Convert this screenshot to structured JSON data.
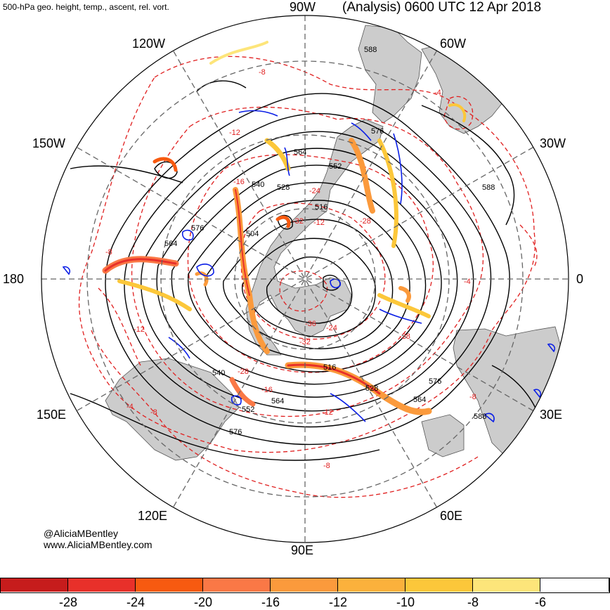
{
  "header": {
    "variables": "500-hPa geo. height, temp., ascent, rel. vort.",
    "valid_time": "(Analysis) 0600 UTC 12 Apr 2018"
  },
  "credits": {
    "handle": "@AliciaMBentley",
    "website": "www.AliciaMBentley.com"
  },
  "map": {
    "projection": "polar stereographic (north pole centered)",
    "colors": {
      "land": "#cccccc",
      "coast": "#555555",
      "grid": "#666666",
      "height_contour": "#000000",
      "temperature_contour": "#e02020",
      "vorticity_contour": "#0a1ee6"
    },
    "longitude_labels": [
      {
        "text": "90W"
      },
      {
        "text": "60W"
      },
      {
        "text": "30W"
      },
      {
        "text": "0"
      },
      {
        "text": "30E"
      },
      {
        "text": "60E"
      },
      {
        "text": "90E"
      },
      {
        "text": "120E"
      },
      {
        "text": "150E"
      },
      {
        "text": "180"
      },
      {
        "text": "150W"
      },
      {
        "text": "120W"
      }
    ],
    "height_labels": [
      "588",
      "576",
      "564",
      "552",
      "540",
      "528",
      "516",
      "504",
      "576",
      "564",
      "564",
      "552",
      "540",
      "528",
      "516",
      "576",
      "588",
      "588",
      "564",
      "576"
    ],
    "temperature_labels": [
      "-8",
      "-4",
      "-12",
      "-16",
      "-24",
      "-28",
      "-32",
      "-36",
      "-32",
      "-28",
      "-16",
      "-12",
      "-8",
      "-8",
      "-12",
      "-8",
      "-4",
      "-4",
      "-28",
      "-24",
      "-8",
      "-12"
    ]
  },
  "colorbar": {
    "colors": [
      "#c61c1c",
      "#e8302a",
      "#f75a10",
      "#fa7846",
      "#fb9a3c",
      "#fbb13c",
      "#fcc73a",
      "#fde57a",
      "#ffffff"
    ],
    "labels": [
      "-28",
      "-24",
      "-20",
      "-16",
      "-12",
      "-10",
      "-8",
      "-6"
    ]
  }
}
